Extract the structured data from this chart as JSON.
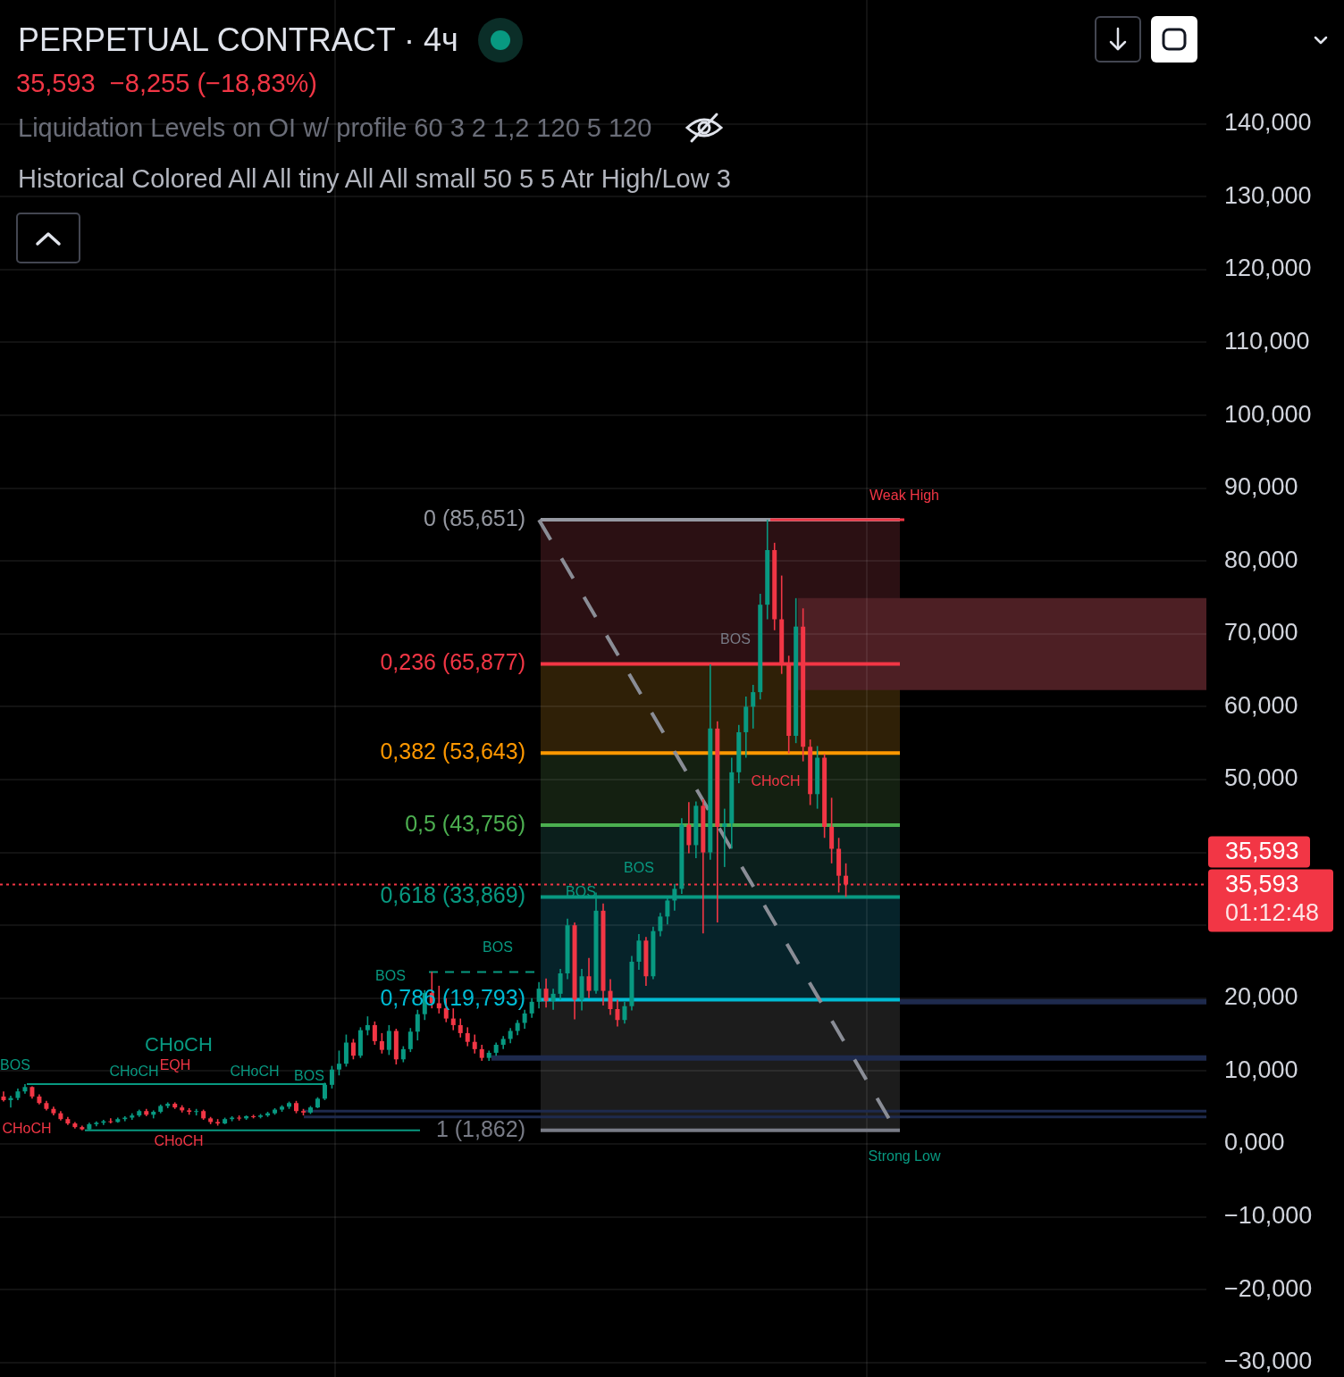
{
  "chart_data": {
    "type": "candlestick",
    "title": "PERPETUAL CONTRACT · 4ч",
    "subtitle": "35,593  −8,255 (−18,83%)",
    "annotations": [
      "Liquidation Levels on OI w/ profile 60 3 2 1,2 120 5 120",
      "Historical Colored All All tiny All All small 50 5 5 Atr High/Low 3",
      "35,593",
      "01:12:48",
      "BOS",
      "CHoCH",
      "EQH",
      "CHoCH",
      "CHoCH",
      "BOS",
      "CHoCH",
      "CHoCH",
      "BOS",
      "BOS",
      "BOS",
      "BOS",
      "BOS",
      "CHoCH"
    ],
    "categories": [
      null,
      null,
      null,
      null,
      null,
      null,
      null,
      null,
      null,
      null,
      null,
      null,
      null,
      null,
      null,
      null,
      null,
      null,
      null,
      null,
      null,
      null,
      null,
      null,
      null,
      null,
      null,
      null,
      null,
      null,
      null,
      null,
      null,
      null,
      null,
      null,
      null,
      null,
      null,
      null,
      null,
      null,
      null,
      null,
      null,
      null,
      null,
      null,
      null,
      null,
      null,
      null,
      null,
      null,
      null,
      null,
      null,
      null,
      null,
      null,
      null,
      null,
      null,
      null,
      null,
      null,
      null,
      null,
      null,
      null,
      null,
      null,
      null,
      null,
      null,
      null,
      null,
      null,
      null,
      null,
      null,
      null,
      null,
      null,
      null,
      null,
      null,
      null,
      null,
      null,
      null,
      null,
      null,
      null,
      null,
      null,
      null,
      null,
      null,
      null,
      null,
      null,
      null,
      null,
      null,
      null,
      null,
      null,
      null,
      null,
      null,
      null,
      null,
      null,
      null,
      null,
      null,
      null,
      null,
      null,
      null,
      null,
      null,
      null,
      null,
      null,
      null,
      null,
      null,
      null,
      null,
      null,
      null,
      null,
      null,
      null,
      null,
      null,
      null,
      null,
      null,
      null,
      null,
      null,
      null,
      null,
      null,
      null,
      null,
      null,
      null,
      null,
      null,
      null,
      null,
      null,
      null,
      null,
      null,
      null,
      null,
      null,
      null,
      null,
      null,
      null,
      null,
      null,
      null
    ],
    "ohlc": [
      [
        6.5,
        7.2,
        5.8,
        6.0
      ],
      [
        6.0,
        6.6,
        5.0,
        6.3
      ],
      [
        6.3,
        7.6,
        6.0,
        7.2
      ],
      [
        7.2,
        8.2,
        6.9,
        7.8
      ],
      [
        7.8,
        7.9,
        6.2,
        6.5
      ],
      [
        6.5,
        6.8,
        5.4,
        5.6
      ],
      [
        5.6,
        5.9,
        4.6,
        4.8
      ],
      [
        4.8,
        5.1,
        3.9,
        4.2
      ],
      [
        4.2,
        4.5,
        3.2,
        3.4
      ],
      [
        3.4,
        3.7,
        2.6,
        2.8
      ],
      [
        2.8,
        3.0,
        2.1,
        2.3
      ],
      [
        2.3,
        2.5,
        1.862,
        2.0
      ],
      [
        2.0,
        2.9,
        1.9,
        2.7
      ],
      [
        2.7,
        3.1,
        2.4,
        2.9
      ],
      [
        2.9,
        3.3,
        2.6,
        3.1
      ],
      [
        3.1,
        3.5,
        2.8,
        3.0
      ],
      [
        3.0,
        3.6,
        2.9,
        3.4
      ],
      [
        3.4,
        3.8,
        3.1,
        3.6
      ],
      [
        3.6,
        4.2,
        3.3,
        3.9
      ],
      [
        3.9,
        4.7,
        3.7,
        4.5
      ],
      [
        4.5,
        4.8,
        3.8,
        4.0
      ],
      [
        4.0,
        4.6,
        3.5,
        4.4
      ],
      [
        4.4,
        5.4,
        4.2,
        5.2
      ],
      [
        5.2,
        5.7,
        4.9,
        5.5
      ],
      [
        5.5,
        5.7,
        4.8,
        5.0
      ],
      [
        5.0,
        5.3,
        4.3,
        4.6
      ],
      [
        4.6,
        4.9,
        4.0,
        4.4
      ],
      [
        4.4,
        4.8,
        3.9,
        4.5
      ],
      [
        4.5,
        4.7,
        3.3,
        3.5
      ],
      [
        3.5,
        3.7,
        2.7,
        3.0
      ],
      [
        3.0,
        3.4,
        2.5,
        2.8
      ],
      [
        2.8,
        3.6,
        2.7,
        3.4
      ],
      [
        3.4,
        3.8,
        3.1,
        3.6
      ],
      [
        3.6,
        3.9,
        3.2,
        3.5
      ],
      [
        3.5,
        3.9,
        3.3,
        3.8
      ],
      [
        3.8,
        4.0,
        3.5,
        3.7
      ],
      [
        3.7,
        4.1,
        3.5,
        3.9
      ],
      [
        3.9,
        4.4,
        3.7,
        4.2
      ],
      [
        4.2,
        4.9,
        4.0,
        4.7
      ],
      [
        4.7,
        5.3,
        4.4,
        5.1
      ],
      [
        5.1,
        5.8,
        4.8,
        5.6
      ],
      [
        5.6,
        5.9,
        4.2,
        4.5
      ],
      [
        4.5,
        4.8,
        3.9,
        4.3
      ],
      [
        4.3,
        5.2,
        4.1,
        5.0
      ],
      [
        5.0,
        6.4,
        4.9,
        6.2
      ],
      [
        6.2,
        8.4,
        6.0,
        8.1
      ],
      [
        8.1,
        10.7,
        7.6,
        10.2
      ],
      [
        10.2,
        12.8,
        9.4,
        11.0
      ],
      [
        11.0,
        15.0,
        10.6,
        13.9
      ],
      [
        13.9,
        14.4,
        11.6,
        12.1
      ],
      [
        12.1,
        16.0,
        11.8,
        15.6
      ],
      [
        15.6,
        17.5,
        14.9,
        16.3
      ],
      [
        16.3,
        16.8,
        13.6,
        14.1
      ],
      [
        14.1,
        15.2,
        12.4,
        12.9
      ],
      [
        12.9,
        16.3,
        12.2,
        15.5
      ],
      [
        15.5,
        15.8,
        10.9,
        11.6
      ],
      [
        11.6,
        13.4,
        11.2,
        13.0
      ],
      [
        13.0,
        15.9,
        12.6,
        15.4
      ],
      [
        15.4,
        18.4,
        14.2,
        17.8
      ],
      [
        17.8,
        21.1,
        17.0,
        20.7
      ],
      [
        20.7,
        23.6,
        18.6,
        19.3
      ],
      [
        19.3,
        21.7,
        17.9,
        18.6
      ],
      [
        18.6,
        20.0,
        16.7,
        17.2
      ],
      [
        17.2,
        18.6,
        15.6,
        16.3
      ],
      [
        16.3,
        17.2,
        14.6,
        15.2
      ],
      [
        15.2,
        16.0,
        13.4,
        14.0
      ],
      [
        14.0,
        15.0,
        12.4,
        13.0
      ],
      [
        13.0,
        13.6,
        11.4,
        11.8
      ],
      [
        11.8,
        12.8,
        11.4,
        12.5
      ],
      [
        12.5,
        13.9,
        12.1,
        13.6
      ],
      [
        13.6,
        14.8,
        13.0,
        14.4
      ],
      [
        14.4,
        15.9,
        13.8,
        15.5
      ],
      [
        15.5,
        17.0,
        14.9,
        16.6
      ],
      [
        16.6,
        18.4,
        15.8,
        17.9
      ],
      [
        17.9,
        20.0,
        17.3,
        19.5
      ],
      [
        19.5,
        22.2,
        18.6,
        21.3
      ],
      [
        21.3,
        22.7,
        18.7,
        19.6
      ],
      [
        19.6,
        21.3,
        18.4,
        20.6
      ],
      [
        20.6,
        24.0,
        19.8,
        23.4
      ],
      [
        23.4,
        30.9,
        22.6,
        30.0
      ],
      [
        30.0,
        30.4,
        17.1,
        19.8
      ],
      [
        19.8,
        24.0,
        18.3,
        23.0
      ],
      [
        23.0,
        25.5,
        20.0,
        21.0
      ],
      [
        21.0,
        34.5,
        20.6,
        32.0
      ],
      [
        32.0,
        33.0,
        19.0,
        21.0
      ],
      [
        21.0,
        22.6,
        17.7,
        18.5
      ],
      [
        18.5,
        19.8,
        16.1,
        17.0
      ],
      [
        17.0,
        19.5,
        16.5,
        18.9
      ],
      [
        18.9,
        25.8,
        18.3,
        25.0
      ],
      [
        25.0,
        28.8,
        23.9,
        27.9
      ],
      [
        27.9,
        28.4,
        21.7,
        23.0
      ],
      [
        23.0,
        29.8,
        22.6,
        29.2
      ],
      [
        29.2,
        31.7,
        28.5,
        31.2
      ],
      [
        31.2,
        33.9,
        30.1,
        33.4
      ],
      [
        33.4,
        35.7,
        32.0,
        35.0
      ],
      [
        35.0,
        44.7,
        34.3,
        43.8
      ],
      [
        43.8,
        46.9,
        39.9,
        41.0
      ],
      [
        41.0,
        47.0,
        39.2,
        46.4
      ],
      [
        46.4,
        47.3,
        28.9,
        40.0
      ],
      [
        40.0,
        65.8,
        39.0,
        57.0
      ],
      [
        57.0,
        58.0,
        30.4,
        43.5
      ],
      [
        43.5,
        46.0,
        38.0,
        44.0
      ],
      [
        44.0,
        53.0,
        40.5,
        51.0
      ],
      [
        51.0,
        57.5,
        49.5,
        56.5
      ],
      [
        56.5,
        61.4,
        53.0,
        60.0
      ],
      [
        60.0,
        63.0,
        57.0,
        62.0
      ],
      [
        62.0,
        75.5,
        61.0,
        74.0
      ],
      [
        74.0,
        85.651,
        72.0,
        81.5
      ],
      [
        81.5,
        82.5,
        70.5,
        72.0
      ],
      [
        72.0,
        78.0,
        64.5,
        66.0
      ],
      [
        66.0,
        67.0,
        53.6,
        56.0
      ],
      [
        56.0,
        74.9,
        55.0,
        71.0
      ],
      [
        71.0,
        73.5,
        52.5,
        54.5
      ],
      [
        54.5,
        55.5,
        46.5,
        48.0
      ],
      [
        48.0,
        54.6,
        46.0,
        53.0
      ],
      [
        53.0,
        53.5,
        42.0,
        43.5
      ],
      [
        43.5,
        47.5,
        38.5,
        40.5
      ],
      [
        40.5,
        42.0,
        34.5,
        36.8
      ],
      [
        36.8,
        38.5,
        33.9,
        35.593
      ],
      null,
      null,
      null,
      null,
      null,
      null,
      null,
      null,
      null,
      null,
      null,
      null,
      null,
      null,
      null,
      null,
      null,
      null,
      null,
      null,
      null,
      null,
      null,
      null,
      null,
      null,
      null,
      null,
      null,
      null,
      null,
      null,
      null,
      null,
      null,
      null,
      null,
      null,
      null,
      null,
      null,
      null,
      null,
      null,
      null,
      null,
      null,
      null,
      null,
      null
    ],
    "series": [
      {
        "type": "line",
        "color": "#8a8d96",
        "line_style": "dashed",
        "values": [
          null,
          null,
          null,
          null,
          null,
          null,
          null,
          null,
          null,
          null,
          null,
          null,
          null,
          null,
          null,
          null,
          null,
          null,
          null,
          null,
          null,
          null,
          null,
          null,
          null,
          null,
          null,
          null,
          null,
          null,
          null,
          null,
          null,
          null,
          null,
          null,
          null,
          null,
          null,
          null,
          null,
          null,
          null,
          null,
          null,
          null,
          null,
          null,
          null,
          null,
          null,
          null,
          null,
          null,
          null,
          null,
          null,
          null,
          null,
          null,
          null,
          null,
          null,
          null,
          null,
          null,
          null,
          null,
          null,
          null,
          null,
          null,
          null,
          null,
          null,
          85.651,
          null,
          null,
          null,
          null,
          null,
          null,
          null,
          null,
          null,
          null,
          null,
          null,
          null,
          null,
          null,
          null,
          null,
          null,
          null,
          null,
          null,
          null,
          null,
          null,
          null,
          null,
          null,
          null,
          null,
          null,
          null,
          null,
          null,
          null,
          null,
          null,
          null,
          null,
          null,
          null,
          null,
          null,
          null,
          null,
          null,
          null,
          null,
          null,
          null,
          1.862,
          null,
          null,
          null,
          null,
          null,
          null,
          null,
          null,
          null,
          null,
          null,
          null,
          null,
          null,
          null,
          null,
          null,
          null,
          null,
          null,
          null,
          null,
          null,
          null,
          null,
          null,
          null,
          null,
          null,
          null,
          null,
          null,
          null,
          null,
          null,
          null,
          null,
          null,
          null,
          null,
          null,
          null,
          null
        ]
      }
    ],
    "ylim": [
      -32,
      157
    ],
    "yticks": [
      {
        "value": -30,
        "label": "−30,000"
      },
      {
        "value": -20,
        "label": "−20,000"
      },
      {
        "value": -10,
        "label": "−10,000"
      },
      {
        "value": 0,
        "label": "0,000"
      },
      {
        "value": 10,
        "label": "10,000"
      },
      {
        "value": 20,
        "label": "20,000"
      },
      {
        "value": 30,
        "label": null
      },
      {
        "value": 40,
        "label": null
      },
      {
        "value": 50,
        "label": "50,000"
      },
      {
        "value": 60,
        "label": "60,000"
      },
      {
        "value": 70,
        "label": "70,000"
      },
      {
        "value": 80,
        "label": "80,000"
      },
      {
        "value": 90,
        "label": "90,000"
      },
      {
        "value": 100,
        "label": "100,000"
      },
      {
        "value": 110,
        "label": "110,000"
      },
      {
        "value": 120,
        "label": "120,000"
      },
      {
        "value": 130,
        "label": "130,000"
      },
      {
        "value": 140,
        "label": "140,000"
      }
    ],
    "grid": true,
    "tick_labels": "y",
    "marker": "none",
    "bands": [
      {
        "axis": "y",
        "from": 65.877,
        "to": 85.651,
        "color": "#2b1013"
      },
      {
        "axis": "y",
        "from": 53.643,
        "to": 65.877,
        "color": "#2f2007"
      },
      {
        "axis": "y",
        "from": 43.756,
        "to": 53.643,
        "color": "#142011"
      },
      {
        "axis": "y",
        "from": 33.869,
        "to": 43.756,
        "color": "#0b1f1c"
      },
      {
        "axis": "y",
        "from": 19.793,
        "to": 33.869,
        "color": "#06232a"
      },
      {
        "axis": "y",
        "from": 1.862,
        "to": 19.793,
        "color": "#1c1c1c"
      },
      {
        "axis": "y",
        "from": 62.3,
        "to": 74.9,
        "color": "#4d1f24"
      }
    ],
    "ref_lines": [
      {
        "axis": "y",
        "value": 19.5,
        "color": "#1e2a4d"
      },
      {
        "axis": "y",
        "value": 11.8,
        "color": "#1e2a4d"
      },
      {
        "axis": "y",
        "value": 4.5,
        "color": "#1e2a4d"
      },
      {
        "axis": "y",
        "value": 3.7,
        "color": "#1e2a4d"
      },
      {
        "axis": "y",
        "value": 8.2,
        "color": "#089981"
      },
      {
        "axis": "y",
        "value": 23.6,
        "color": "#089981",
        "line_style": "dashed"
      },
      {
        "axis": "y",
        "value": 1.862,
        "label": "Strong Low",
        "color": "#089981"
      },
      {
        "axis": "y",
        "value": 85.651,
        "label": "0 (85,651)",
        "color": "#9598a1"
      },
      {
        "axis": "y",
        "value": 65.877,
        "label": "0,236 (65,877)",
        "color": "#f23645"
      },
      {
        "axis": "y",
        "value": 53.643,
        "label": "0,382 (53,643)",
        "color": "#ff9800"
      },
      {
        "axis": "y",
        "value": 43.756,
        "label": "0,5 (43,756)",
        "color": "#4caf50"
      },
      {
        "axis": "y",
        "value": 33.869,
        "label": "0,618 (33,869)",
        "color": "#089981"
      },
      {
        "axis": "y",
        "value": 19.793,
        "label": "0,786 (19,793)",
        "color": "#00bcd4"
      },
      {
        "axis": "y",
        "value": 1.862,
        "label": "1 (1,862)",
        "color": "#787b86"
      },
      {
        "axis": "y",
        "value": 85.651,
        "label": "Weak High",
        "color": "#f23645"
      },
      {
        "axis": "y",
        "value": 35.593,
        "label": "35,593",
        "color": "#f23645",
        "line_style": "dotted"
      }
    ]
  }
}
